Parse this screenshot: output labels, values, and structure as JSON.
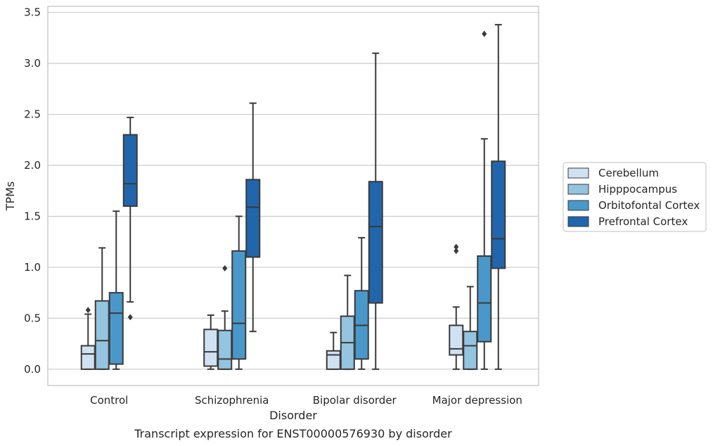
{
  "caption": "Transcript expression for ENST00000576930 by disorder",
  "chart_data": {
    "type": "box",
    "xlabel": "Disorder",
    "ylabel": "TPMs",
    "ylim": [
      -0.16,
      3.56
    ],
    "yticks": [
      "0.0",
      "0.5",
      "1.0",
      "1.5",
      "2.0",
      "2.5",
      "3.0",
      "3.5"
    ],
    "grid": "horizontal",
    "legend_position": "right",
    "categories": [
      "Control",
      "Schizophrenia",
      "Bipolar disorder",
      "Major depression"
    ],
    "series": [
      {
        "name": "Cerebellum",
        "color": "#d0e1f2",
        "boxes": [
          {
            "whislo": 0.0,
            "q1": 0.0,
            "med": 0.15,
            "q3": 0.23,
            "whishi": 0.54,
            "fliers": [
              0.58
            ]
          },
          {
            "whislo": 0.0,
            "q1": 0.03,
            "med": 0.17,
            "q3": 0.39,
            "whishi": 0.53,
            "fliers": []
          },
          {
            "whislo": 0.0,
            "q1": 0.0,
            "med": 0.14,
            "q3": 0.18,
            "whishi": 0.36,
            "fliers": []
          },
          {
            "whislo": 0.0,
            "q1": 0.14,
            "med": 0.2,
            "q3": 0.43,
            "whishi": 0.61,
            "fliers": [
              1.16,
              1.2
            ]
          }
        ]
      },
      {
        "name": "Hipppocampus",
        "color": "#94c4df",
        "boxes": [
          {
            "whislo": 0.0,
            "q1": 0.0,
            "med": 0.28,
            "q3": 0.67,
            "whishi": 1.19,
            "fliers": []
          },
          {
            "whislo": 0.0,
            "q1": 0.0,
            "med": 0.1,
            "q3": 0.38,
            "whishi": 0.57,
            "fliers": [
              0.99
            ]
          },
          {
            "whislo": 0.0,
            "q1": 0.0,
            "med": 0.26,
            "q3": 0.52,
            "whishi": 0.92,
            "fliers": []
          },
          {
            "whislo": 0.0,
            "q1": 0.0,
            "med": 0.23,
            "q3": 0.37,
            "whishi": 0.81,
            "fliers": []
          }
        ]
      },
      {
        "name": "Orbitofontal Cortex",
        "color": "#4a98c9",
        "boxes": [
          {
            "whislo": 0.0,
            "q1": 0.05,
            "med": 0.55,
            "q3": 0.75,
            "whishi": 1.55,
            "fliers": []
          },
          {
            "whislo": 0.0,
            "q1": 0.1,
            "med": 0.45,
            "q3": 1.16,
            "whishi": 1.5,
            "fliers": []
          },
          {
            "whislo": 0.0,
            "q1": 0.1,
            "med": 0.43,
            "q3": 0.77,
            "whishi": 1.29,
            "fliers": []
          },
          {
            "whislo": 0.0,
            "q1": 0.27,
            "med": 0.65,
            "q3": 1.11,
            "whishi": 2.26,
            "fliers": [
              3.29
            ]
          }
        ]
      },
      {
        "name": "Prefrontal Cortex",
        "color": "#2166ac",
        "boxes": [
          {
            "whislo": 0.66,
            "q1": 1.6,
            "med": 1.82,
            "q3": 2.3,
            "whishi": 2.47,
            "fliers": [
              0.51
            ]
          },
          {
            "whislo": 0.37,
            "q1": 1.1,
            "med": 1.59,
            "q3": 1.86,
            "whishi": 2.61,
            "fliers": []
          },
          {
            "whislo": 0.0,
            "q1": 0.65,
            "med": 1.4,
            "q3": 1.84,
            "whishi": 3.1,
            "fliers": []
          },
          {
            "whislo": 0.0,
            "q1": 0.99,
            "med": 1.28,
            "q3": 2.04,
            "whishi": 3.38,
            "fliers": []
          }
        ]
      }
    ]
  }
}
